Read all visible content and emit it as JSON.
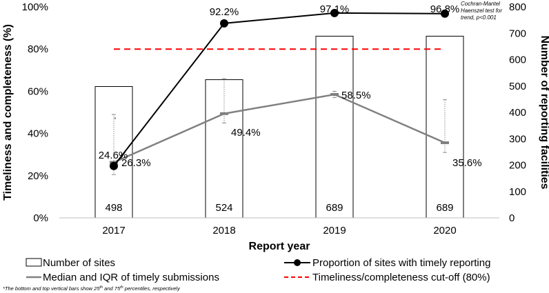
{
  "chart_data": {
    "type": "bar+line",
    "categories": [
      "2017",
      "2018",
      "2019",
      "2020"
    ],
    "xlabel": "Report year",
    "ylabel_left": "Timeliness and completeness (%)",
    "ylabel_right": "Number of reporting facilities",
    "ylim_left": [
      0,
      100
    ],
    "ylim_right": [
      0,
      800
    ],
    "left_ticks": [
      "0%",
      "20%",
      "40%",
      "60%",
      "80%",
      "100%"
    ],
    "right_ticks": [
      "0",
      "100",
      "200",
      "300",
      "400",
      "500",
      "600",
      "700",
      "800"
    ],
    "bars": {
      "name": "Number of sites",
      "values": [
        498,
        524,
        689,
        689
      ],
      "labels": [
        "498",
        "524",
        "689",
        "689"
      ]
    },
    "proportion_line": {
      "name": "Proportion of sites with timely reporting",
      "values": [
        24.6,
        92.2,
        97.1,
        96.8
      ],
      "labels": [
        "24.6%",
        "92.2%",
        "97.1%",
        "96.8%"
      ],
      "color": "#000000"
    },
    "median_line": {
      "name": "Median and IQR of timely submissions",
      "values": [
        26.3,
        49.4,
        58.5,
        35.6
      ],
      "labels": [
        "26.3%",
        "49.4%",
        "58.5%",
        "35.6%"
      ],
      "iqr_low": [
        20.5,
        45.0,
        57.0,
        31.0
      ],
      "iqr_high": [
        49.0,
        66.0,
        60.0,
        56.0
      ],
      "color": "#808080"
    },
    "outlier": {
      "category": "2017",
      "value": 47
    },
    "cutoff": {
      "name": "Timeliness/completeness cut-off (80%)",
      "value": 80,
      "color": "#ff0000"
    },
    "annotation": "Cochran-Mantel Haenszel test for trend, p<0.001",
    "footnote": "*The bottom and top vertical bars show 25th and 75th percentiles, respectively"
  }
}
